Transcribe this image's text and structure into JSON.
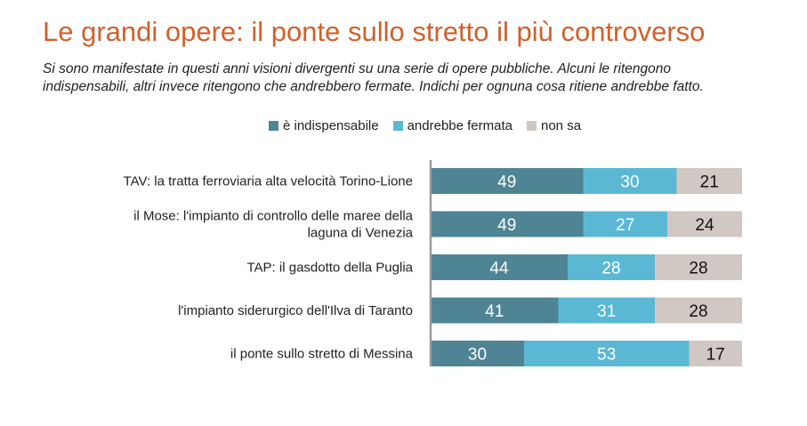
{
  "title": "Le grandi opere: il ponte sullo stretto il più controverso",
  "subtitle": [
    "Si sono manifestate in questi anni visioni divergenti su una serie di opere pubbliche. Alcuni le ritengono",
    "indispensabili, altri invece ritengono che andrebbero fermate. Indichi per ognuna cosa ritiene andrebbe fatto."
  ],
  "chart_data": {
    "type": "bar",
    "orientation": "horizontal",
    "stacked": true,
    "legend_position": "top",
    "xlim": [
      0,
      100
    ],
    "grid": false,
    "categories": [
      [
        "TAV: la tratta ferroviaria alta velocità Torino-Lione"
      ],
      [
        "il Mose: l'impianto di controllo delle maree della",
        "laguna di Venezia"
      ],
      [
        "TAP: il gasdotto della Puglia"
      ],
      [
        "l'impianto siderurgico dell'Ilva di Taranto"
      ],
      [
        "il ponte sullo stretto di Messina"
      ]
    ],
    "series": [
      {
        "name": "è indispensabile",
        "color": "#4f8494",
        "label_color": "#ffffff",
        "values": [
          49,
          49,
          44,
          41,
          30
        ]
      },
      {
        "name": "andrebbe fermata",
        "color": "#5ab8d5",
        "label_color": "#ffffff",
        "values": [
          30,
          27,
          28,
          31,
          53
        ]
      },
      {
        "name": "non sa",
        "color": "#d1c8c3",
        "label_color": "#111111",
        "values": [
          21,
          24,
          28,
          28,
          17
        ]
      }
    ]
  }
}
